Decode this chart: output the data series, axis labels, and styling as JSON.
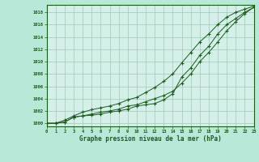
{
  "xlabel": "Graphe pression niveau de la mer (hPa)",
  "ylim": [
    999.5,
    1019.2
  ],
  "xlim": [
    0,
    23
  ],
  "yticks": [
    1000,
    1002,
    1004,
    1006,
    1008,
    1010,
    1012,
    1014,
    1016,
    1018
  ],
  "xticks": [
    0,
    1,
    2,
    3,
    4,
    5,
    6,
    7,
    8,
    9,
    10,
    11,
    12,
    13,
    14,
    15,
    16,
    17,
    18,
    19,
    20,
    21,
    22,
    23
  ],
  "bg_color": "#b8e8d8",
  "plot_bg_color": "#d4f0e8",
  "line_color": "#1a5c1a",
  "grid_color": "#a0c8b8",
  "series1": [
    1000.0,
    1000.0,
    1000.2,
    1001.0,
    1001.2,
    1001.3,
    1001.5,
    1001.8,
    1002.0,
    1002.3,
    1002.8,
    1003.0,
    1003.2,
    1003.8,
    1004.8,
    1007.5,
    1009.0,
    1011.0,
    1012.5,
    1014.5,
    1016.0,
    1017.0,
    1018.0,
    1018.8
  ],
  "series2": [
    1000.0,
    1000.0,
    1000.2,
    1001.0,
    1001.2,
    1001.5,
    1001.8,
    1002.0,
    1002.3,
    1002.8,
    1003.0,
    1003.5,
    1004.0,
    1004.5,
    1005.2,
    1006.5,
    1008.0,
    1010.0,
    1011.5,
    1013.2,
    1015.0,
    1016.5,
    1017.8,
    1018.8
  ],
  "series3": [
    1000.0,
    1000.0,
    1000.5,
    1001.2,
    1001.8,
    1002.2,
    1002.5,
    1002.8,
    1003.2,
    1003.8,
    1004.2,
    1005.0,
    1005.8,
    1006.8,
    1008.0,
    1009.8,
    1011.5,
    1013.2,
    1014.5,
    1016.0,
    1017.2,
    1018.0,
    1018.5,
    1019.0
  ]
}
